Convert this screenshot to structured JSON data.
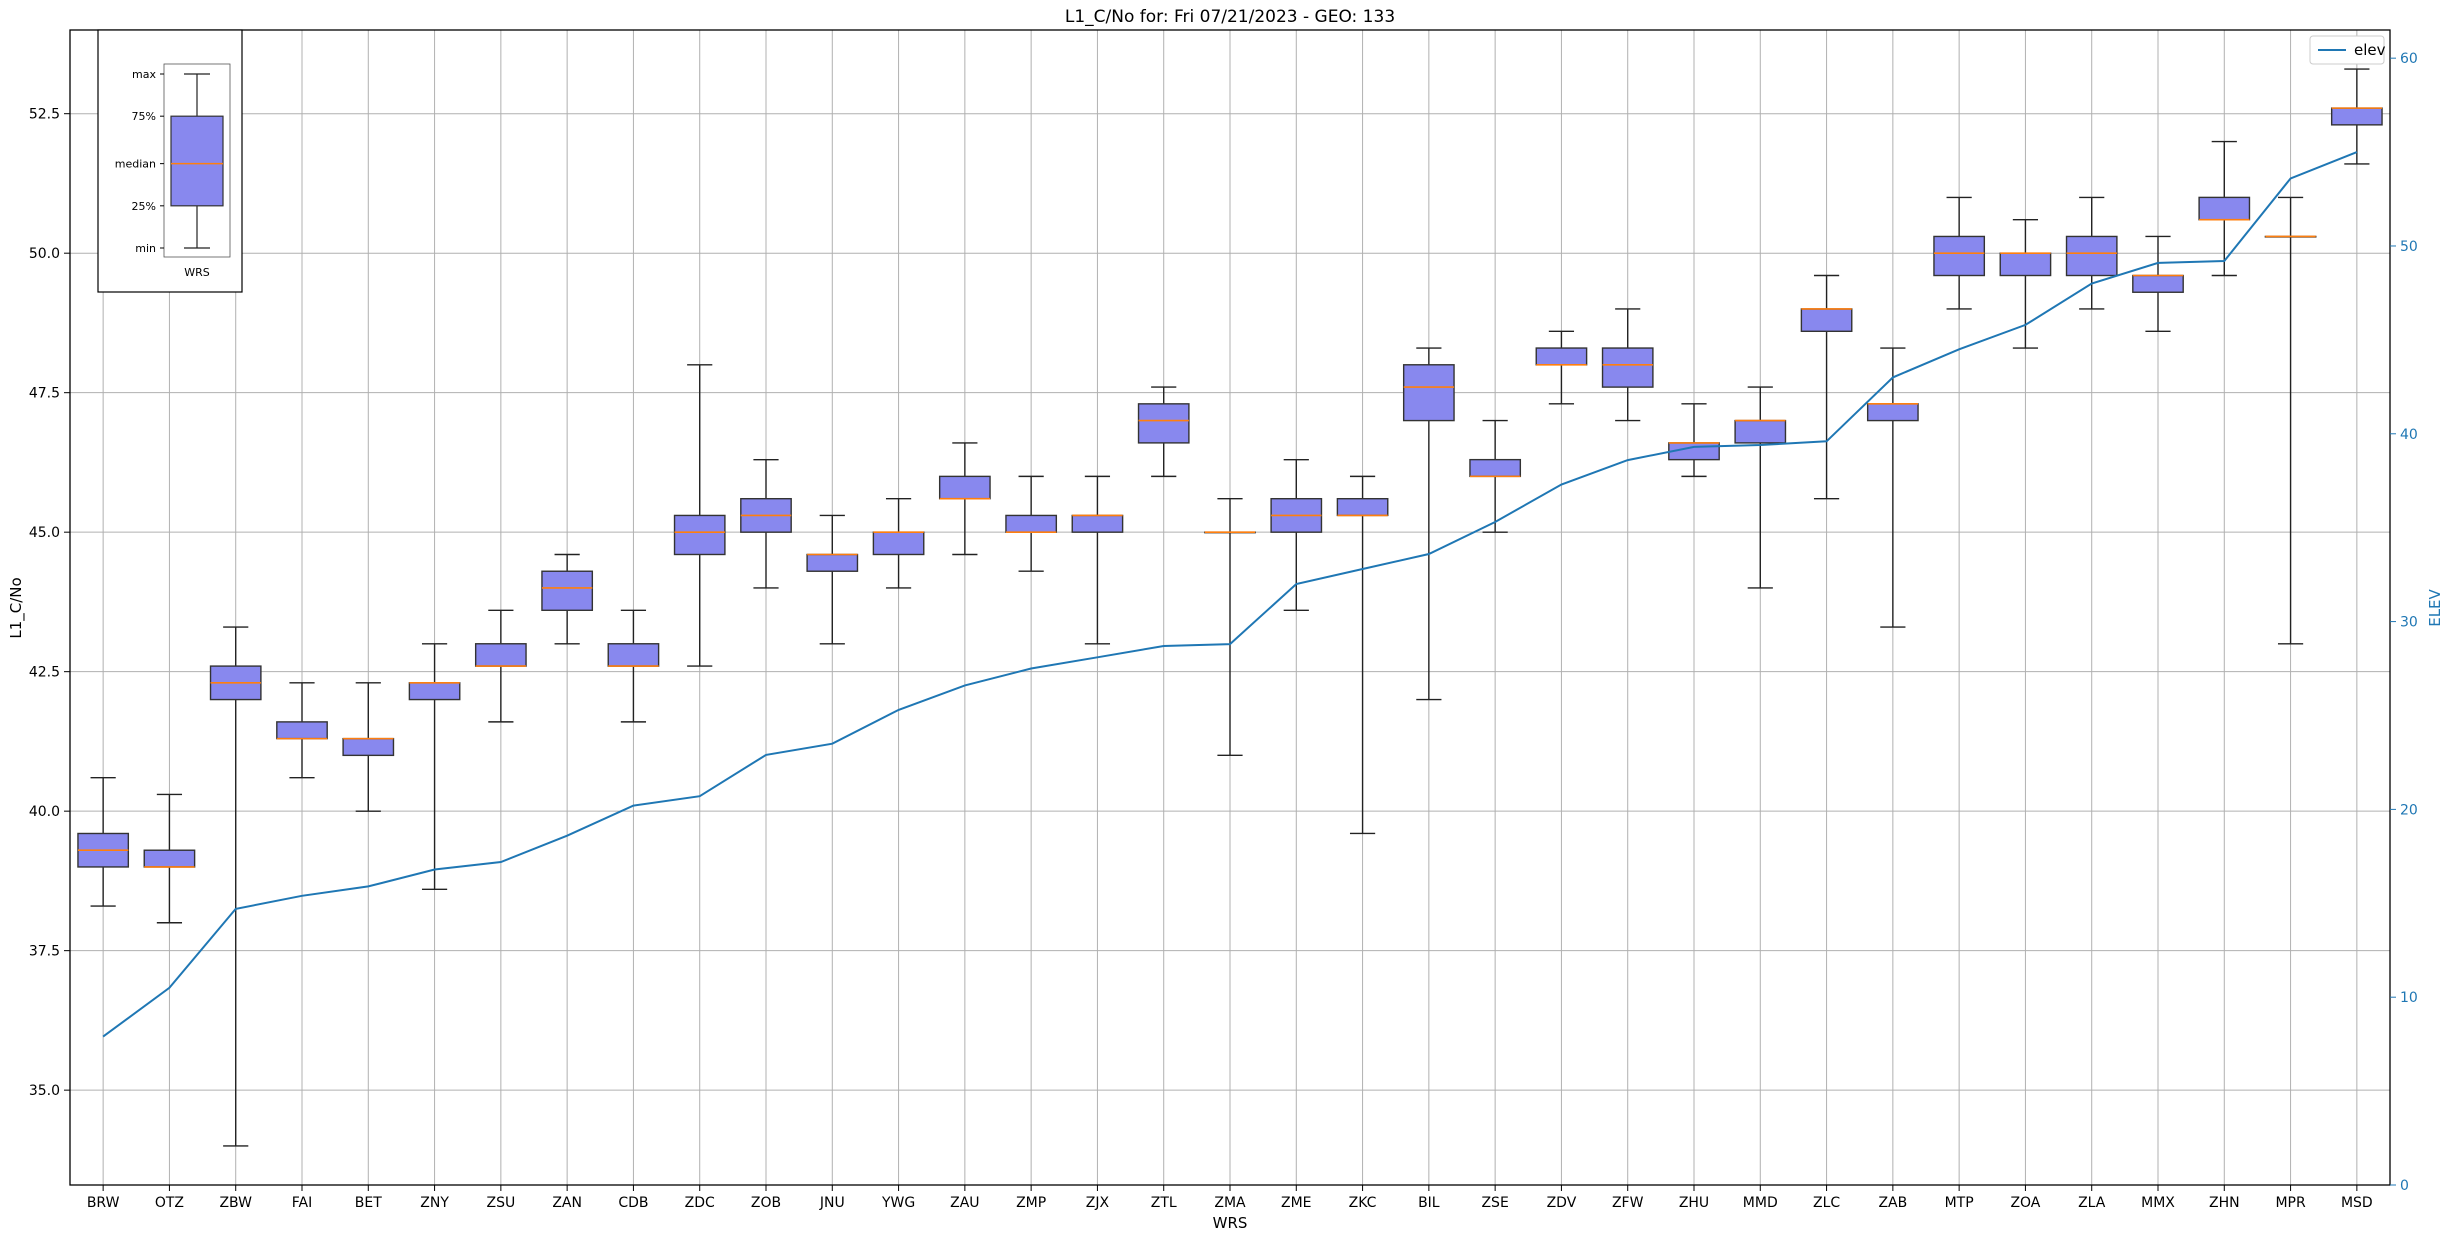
{
  "chart_data": {
    "type": "box",
    "title": "L1_C/No for: Fri 07/21/2023 - GEO: 133",
    "xlabel": "WRS",
    "ylabel": "L1_C/No",
    "y2label": "ELEV",
    "ylim": [
      33.3,
      54.0
    ],
    "y2lim": [
      0,
      61.5
    ],
    "yticks": [
      "35.0",
      "37.5",
      "40.0",
      "42.5",
      "45.0",
      "47.5",
      "50.0",
      "52.5"
    ],
    "y2ticks": [
      "0",
      "10",
      "20",
      "30",
      "40",
      "50",
      "60"
    ],
    "grid": true,
    "colors": {
      "box_fill": "#8888ee",
      "box_edge": "#333333",
      "median": "#ff7f0e",
      "elev_line": "#1f77b4"
    },
    "legend": {
      "position": "top-right",
      "entries": [
        "elev"
      ]
    },
    "inset": {
      "labels": [
        "max",
        "75%",
        "median",
        "25%",
        "min"
      ],
      "xlabel": "WRS",
      "stats": {
        "min": 50.2,
        "q1": 51.0,
        "median": 51.8,
        "q3": 52.7,
        "max": 53.5
      }
    },
    "categories": [
      "BRW",
      "OTZ",
      "ZBW",
      "FAI",
      "BET",
      "ZNY",
      "ZSU",
      "ZAN",
      "CDB",
      "ZDC",
      "ZOB",
      "JNU",
      "YWG",
      "ZAU",
      "ZMP",
      "ZJX",
      "ZTL",
      "ZMA",
      "ZME",
      "ZKC",
      "BIL",
      "ZSE",
      "ZDV",
      "ZFW",
      "ZHU",
      "MMD",
      "ZLC",
      "ZAB",
      "MTP",
      "ZOA",
      "ZLA",
      "MMX",
      "ZHN",
      "MPR",
      "MSD"
    ],
    "boxes": [
      {
        "min": 38.3,
        "q1": 39.0,
        "median": 39.3,
        "q3": 39.6,
        "max": 40.6
      },
      {
        "min": 38.0,
        "q1": 39.0,
        "median": 39.0,
        "q3": 39.3,
        "max": 40.3
      },
      {
        "min": 34.0,
        "q1": 42.0,
        "median": 42.3,
        "q3": 42.6,
        "max": 43.3
      },
      {
        "min": 40.6,
        "q1": 41.3,
        "median": 41.3,
        "q3": 41.6,
        "max": 42.3
      },
      {
        "min": 40.0,
        "q1": 41.0,
        "median": 41.3,
        "q3": 41.3,
        "max": 42.3
      },
      {
        "min": 38.6,
        "q1": 42.0,
        "median": 42.3,
        "q3": 42.3,
        "max": 43.0
      },
      {
        "min": 41.6,
        "q1": 42.6,
        "median": 42.6,
        "q3": 43.0,
        "max": 43.6
      },
      {
        "min": 43.0,
        "q1": 43.6,
        "median": 44.0,
        "q3": 44.3,
        "max": 44.6
      },
      {
        "min": 41.6,
        "q1": 42.6,
        "median": 42.6,
        "q3": 43.0,
        "max": 43.6
      },
      {
        "min": 42.6,
        "q1": 44.6,
        "median": 45.0,
        "q3": 45.3,
        "max": 48.0
      },
      {
        "min": 44.0,
        "q1": 45.0,
        "median": 45.3,
        "q3": 45.6,
        "max": 46.3
      },
      {
        "min": 43.0,
        "q1": 44.3,
        "median": 44.6,
        "q3": 44.6,
        "max": 45.3
      },
      {
        "min": 44.0,
        "q1": 44.6,
        "median": 45.0,
        "q3": 45.0,
        "max": 45.6
      },
      {
        "min": 44.6,
        "q1": 45.6,
        "median": 45.6,
        "q3": 46.0,
        "max": 46.6
      },
      {
        "min": 44.3,
        "q1": 45.0,
        "median": 45.0,
        "q3": 45.3,
        "max": 46.0
      },
      {
        "min": 43.0,
        "q1": 45.0,
        "median": 45.3,
        "q3": 45.3,
        "max": 46.0
      },
      {
        "min": 46.0,
        "q1": 46.6,
        "median": 47.0,
        "q3": 47.3,
        "max": 47.6
      },
      {
        "min": 41.0,
        "q1": 45.0,
        "median": 45.0,
        "q3": 45.0,
        "max": 45.6
      },
      {
        "min": 43.6,
        "q1": 45.0,
        "median": 45.3,
        "q3": 45.6,
        "max": 46.3
      },
      {
        "min": 39.6,
        "q1": 45.3,
        "median": 45.3,
        "q3": 45.6,
        "max": 46.0
      },
      {
        "min": 42.0,
        "q1": 47.0,
        "median": 47.6,
        "q3": 48.0,
        "max": 48.3
      },
      {
        "min": 45.0,
        "q1": 46.0,
        "median": 46.0,
        "q3": 46.3,
        "max": 47.0
      },
      {
        "min": 47.3,
        "q1": 48.0,
        "median": 48.0,
        "q3": 48.3,
        "max": 48.6
      },
      {
        "min": 47.0,
        "q1": 47.6,
        "median": 48.0,
        "q3": 48.3,
        "max": 49.0
      },
      {
        "min": 46.0,
        "q1": 46.3,
        "median": 46.6,
        "q3": 46.6,
        "max": 47.3
      },
      {
        "min": 44.0,
        "q1": 46.6,
        "median": 47.0,
        "q3": 47.0,
        "max": 47.6
      },
      {
        "min": 45.6,
        "q1": 48.6,
        "median": 49.0,
        "q3": 49.0,
        "max": 49.6
      },
      {
        "min": 43.3,
        "q1": 47.0,
        "median": 47.3,
        "q3": 47.3,
        "max": 48.3
      },
      {
        "min": 49.0,
        "q1": 49.6,
        "median": 50.0,
        "q3": 50.3,
        "max": 51.0
      },
      {
        "min": 48.3,
        "q1": 49.6,
        "median": 50.0,
        "q3": 50.0,
        "max": 50.6
      },
      {
        "min": 49.0,
        "q1": 49.6,
        "median": 50.0,
        "q3": 50.3,
        "max": 51.0
      },
      {
        "min": 48.6,
        "q1": 49.3,
        "median": 49.6,
        "q3": 49.6,
        "max": 50.3
      },
      {
        "min": 49.6,
        "q1": 50.6,
        "median": 50.6,
        "q3": 51.0,
        "max": 52.0
      },
      {
        "min": 43.0,
        "q1": 50.3,
        "median": 50.3,
        "q3": 50.3,
        "max": 51.0
      },
      {
        "min": 51.6,
        "q1": 52.3,
        "median": 52.6,
        "q3": 52.6,
        "max": 53.3
      }
    ],
    "series": [
      {
        "name": "elev",
        "axis": "right",
        "values": [
          7.9,
          10.5,
          14.7,
          15.4,
          15.9,
          16.8,
          17.2,
          18.6,
          20.2,
          20.7,
          22.9,
          23.5,
          25.3,
          26.6,
          27.5,
          28.1,
          28.7,
          28.8,
          32.0,
          32.8,
          33.6,
          35.3,
          37.3,
          38.6,
          39.3,
          39.4,
          39.6,
          43.0,
          44.5,
          45.8,
          48.0,
          49.1,
          49.2,
          53.6,
          55.0
        ]
      }
    ]
  }
}
